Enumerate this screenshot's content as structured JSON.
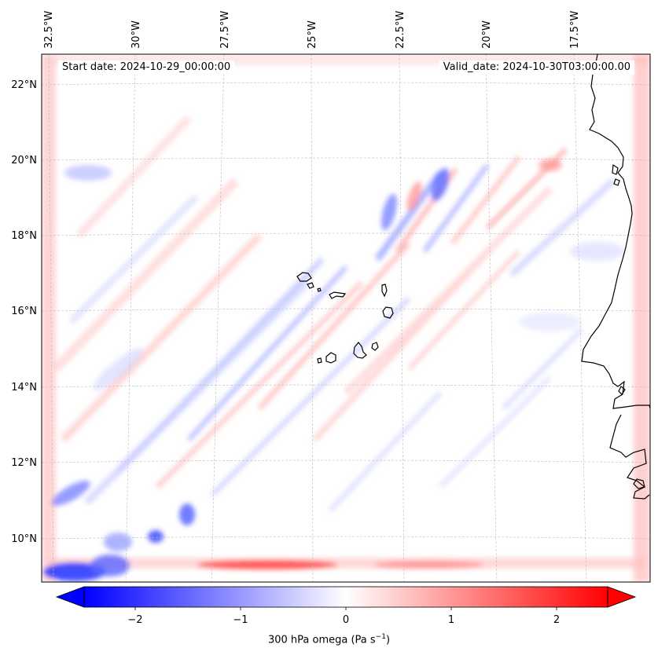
{
  "map": {
    "start_date": "Start date: 2024-10-29_00:00:00",
    "valid_date": "Valid_date: 2024-10-30T03:00:00.00",
    "lon_labels": [
      "32.5°W",
      "30°W",
      "27.5°W",
      "25°W",
      "22.5°W",
      "20°W",
      "17.5°W"
    ],
    "lat_labels": [
      "22°N",
      "20°N",
      "18°N",
      "16°N",
      "14°N",
      "12°N",
      "10°N"
    ],
    "field": "300 hPa omega",
    "field_min_color": "#0000ff",
    "field_zero_color": "#ffffff",
    "field_max_color": "#ff0000",
    "coastline_color": "#000000"
  },
  "colorbar": {
    "label_text": "300 hPa omega (Pa s",
    "label_exponent": "−1",
    "label_close": ")",
    "ticks": [
      "−2",
      "−1",
      "0",
      "1",
      "2"
    ],
    "range": [
      -2.6,
      2.6
    ]
  }
}
